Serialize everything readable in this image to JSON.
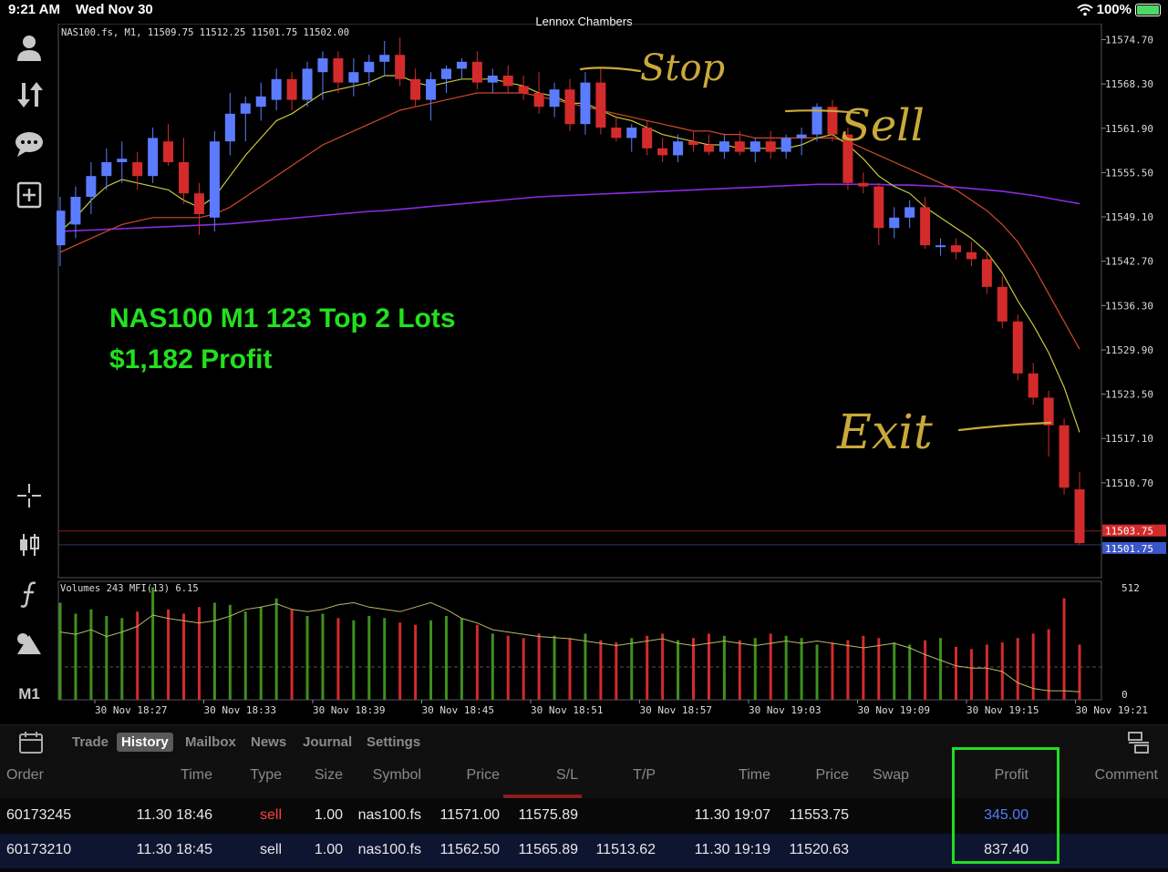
{
  "status_bar": {
    "time": "9:21 AM",
    "date": "Wed Nov 30",
    "title": "Lennox Chambers",
    "battery": "100%"
  },
  "toolbar": {
    "bottom_label": "M1"
  },
  "chart_data": {
    "type": "candlestick",
    "symbol_info": "NAS100.fs, M1, 11509.75 11512.25 11501.75 11502.00",
    "price_ticks": [
      "11574.70",
      "11568.30",
      "11561.90",
      "11555.50",
      "11549.10",
      "11542.70",
      "11536.30",
      "11529.90",
      "11523.50",
      "11517.10",
      "11510.70"
    ],
    "price_tick_values": [
      11574.7,
      11568.3,
      11561.9,
      11555.5,
      11549.1,
      11542.7,
      11536.3,
      11529.9,
      11523.5,
      11517.1,
      11510.7
    ],
    "ylim": [
      11497.0,
      11577.0
    ],
    "current_prices": {
      "red": "11503.75",
      "blue": "11501.75",
      "red_value": 11503.75,
      "blue_value": 11501.75
    },
    "time_labels": [
      "30 Nov 18:27",
      "30 Nov 18:33",
      "30 Nov 18:39",
      "30 Nov 18:45",
      "30 Nov 18:51",
      "30 Nov 18:57",
      "30 Nov 19:03",
      "30 Nov 19:09",
      "30 Nov 19:15",
      "30 Nov 19:21"
    ],
    "candles": [
      [
        11545.0,
        11552.0,
        11542.0,
        11550.0
      ],
      [
        11548.0,
        11553.5,
        11546.0,
        11552.0
      ],
      [
        11552.0,
        11557.0,
        11549.5,
        11555.0
      ],
      [
        11555.0,
        11559.0,
        11553.0,
        11557.0
      ],
      [
        11557.0,
        11560.0,
        11554.0,
        11557.5
      ],
      [
        11557.0,
        11558.5,
        11553.0,
        11555.0
      ],
      [
        11555.0,
        11562.0,
        11554.0,
        11560.5
      ],
      [
        11560.0,
        11562.5,
        11556.5,
        11557.0
      ],
      [
        11557.0,
        11560.5,
        11551.0,
        11552.5
      ],
      [
        11552.5,
        11554.0,
        11546.5,
        11549.5
      ],
      [
        11549.0,
        11561.5,
        11547.0,
        11560.0
      ],
      [
        11560.0,
        11567.0,
        11558.0,
        11564.0
      ],
      [
        11564.0,
        11566.5,
        11560.0,
        11565.5
      ],
      [
        11565.0,
        11568.5,
        11563.0,
        11566.5
      ],
      [
        11566.0,
        11570.5,
        11564.5,
        11569.0
      ],
      [
        11569.0,
        11570.0,
        11564.5,
        11566.0
      ],
      [
        11566.0,
        11571.5,
        11565.0,
        11570.5
      ],
      [
        11570.0,
        11573.0,
        11566.0,
        11572.0
      ],
      [
        11572.0,
        11573.0,
        11567.0,
        11568.5
      ],
      [
        11568.5,
        11572.0,
        11566.5,
        11570.0
      ],
      [
        11570.0,
        11572.5,
        11568.0,
        11571.5
      ],
      [
        11571.5,
        11574.5,
        11569.5,
        11572.5
      ],
      [
        11572.5,
        11575.0,
        11568.0,
        11569.0
      ],
      [
        11569.0,
        11570.5,
        11565.0,
        11566.0
      ],
      [
        11566.0,
        11570.0,
        11563.0,
        11569.0
      ],
      [
        11569.0,
        11571.0,
        11567.0,
        11570.5
      ],
      [
        11570.5,
        11572.0,
        11569.0,
        11571.5
      ],
      [
        11571.5,
        11573.0,
        11567.5,
        11568.5
      ],
      [
        11568.5,
        11570.5,
        11567.0,
        11569.5
      ],
      [
        11569.5,
        11571.0,
        11567.0,
        11568.0
      ],
      [
        11568.0,
        11569.5,
        11566.0,
        11567.0
      ],
      [
        11567.0,
        11570.0,
        11564.0,
        11565.0
      ],
      [
        11565.0,
        11568.5,
        11563.5,
        11567.5
      ],
      [
        11567.5,
        11569.0,
        11561.5,
        11562.5
      ],
      [
        11562.5,
        11570.0,
        11561.0,
        11568.5
      ],
      [
        11568.5,
        11570.5,
        11561.0,
        11562.0
      ],
      [
        11562.0,
        11563.5,
        11560.0,
        11560.5
      ],
      [
        11560.5,
        11562.5,
        11558.5,
        11562.0
      ],
      [
        11562.0,
        11563.0,
        11558.0,
        11559.0
      ],
      [
        11559.0,
        11560.5,
        11557.0,
        11558.0
      ],
      [
        11558.0,
        11561.0,
        11557.0,
        11560.0
      ],
      [
        11560.0,
        11561.5,
        11558.5,
        11559.5
      ],
      [
        11559.5,
        11561.0,
        11558.0,
        11558.5
      ],
      [
        11558.5,
        11561.0,
        11557.5,
        11560.0
      ],
      [
        11560.0,
        11561.5,
        11558.0,
        11558.5
      ],
      [
        11558.5,
        11560.5,
        11557.0,
        11560.0
      ],
      [
        11560.0,
        11561.5,
        11557.5,
        11558.5
      ],
      [
        11558.5,
        11561.0,
        11557.5,
        11560.5
      ],
      [
        11560.5,
        11562.0,
        11558.0,
        11561.0
      ],
      [
        11561.0,
        11565.5,
        11560.0,
        11565.0
      ],
      [
        11565.0,
        11566.0,
        11560.0,
        11561.0
      ],
      [
        11561.0,
        11562.0,
        11553.0,
        11554.0
      ],
      [
        11554.0,
        11555.5,
        11552.5,
        11553.5
      ],
      [
        11553.5,
        11554.0,
        11545.0,
        11547.5
      ],
      [
        11547.5,
        11550.5,
        11546.0,
        11549.0
      ],
      [
        11549.0,
        11551.5,
        11547.5,
        11550.5
      ],
      [
        11550.5,
        11552.0,
        11544.5,
        11545.0
      ],
      [
        11545.0,
        11546.0,
        11543.5,
        11545.0
      ],
      [
        11545.0,
        11546.0,
        11543.0,
        11544.0
      ],
      [
        11544.0,
        11545.5,
        11542.0,
        11543.0
      ],
      [
        11543.0,
        11544.0,
        11538.0,
        11539.0
      ],
      [
        11539.0,
        11540.5,
        11533.0,
        11534.0
      ],
      [
        11534.0,
        11535.0,
        11525.5,
        11526.5
      ],
      [
        11526.5,
        11528.0,
        11522.0,
        11523.0
      ],
      [
        11523.0,
        11524.0,
        11514.5,
        11519.0
      ],
      [
        11519.0,
        11520.0,
        11509.0,
        11510.0
      ],
      [
        11509.75,
        11512.25,
        11501.75,
        11502.0
      ]
    ],
    "ma_yellow": [
      11547.0,
      11549.0,
      11551.5,
      11553.5,
      11554.5,
      11554.0,
      11553.5,
      11553.0,
      11551.5,
      11550.5,
      11552.0,
      11555.0,
      11558.0,
      11560.5,
      11563.0,
      11564.0,
      11565.5,
      11567.0,
      11567.5,
      11568.0,
      11568.5,
      11569.5,
      11569.5,
      11568.5,
      11568.0,
      11568.5,
      11569.0,
      11569.0,
      11569.0,
      11568.5,
      11568.0,
      11567.0,
      11566.5,
      11565.5,
      11565.5,
      11564.5,
      11563.5,
      11563.0,
      11562.0,
      11561.0,
      11560.5,
      11560.0,
      11559.5,
      11559.5,
      11559.0,
      11559.0,
      11559.0,
      11559.0,
      11559.5,
      11560.5,
      11561.0,
      11559.5,
      11557.5,
      11555.0,
      11553.5,
      11552.5,
      11550.5,
      11549.0,
      11547.5,
      11546.0,
      11544.0,
      11541.0,
      11537.0,
      11533.5,
      11529.5,
      11524.5,
      11518.0
    ],
    "ma_red": [
      11544.0,
      11545.0,
      11546.0,
      11547.0,
      11548.0,
      11548.5,
      11549.0,
      11549.0,
      11549.0,
      11549.0,
      11549.5,
      11550.5,
      11552.0,
      11553.5,
      11555.0,
      11556.5,
      11558.0,
      11559.5,
      11560.5,
      11561.5,
      11562.5,
      11563.5,
      11564.5,
      11565.0,
      11565.5,
      11566.0,
      11566.5,
      11567.0,
      11567.0,
      11567.0,
      11567.0,
      11566.5,
      11566.0,
      11565.5,
      11565.0,
      11564.5,
      11564.0,
      11563.5,
      11563.0,
      11562.5,
      11562.0,
      11561.5,
      11561.5,
      11561.0,
      11561.0,
      11560.5,
      11560.5,
      11560.5,
      11560.5,
      11560.5,
      11560.5,
      11560.0,
      11559.0,
      11558.0,
      11557.0,
      11556.0,
      11555.0,
      11554.0,
      11553.0,
      11551.5,
      11550.0,
      11548.0,
      11545.5,
      11542.0,
      11538.0,
      11534.0,
      11530.0
    ],
    "ma_purple": [
      11547.0,
      11547.1,
      11547.2,
      11547.3,
      11547.4,
      11547.5,
      11547.6,
      11547.7,
      11547.8,
      11547.9,
      11548.0,
      11548.1,
      11548.3,
      11548.5,
      11548.7,
      11548.9,
      11549.1,
      11549.3,
      11549.5,
      11549.7,
      11549.9,
      11550.0,
      11550.2,
      11550.4,
      11550.6,
      11550.8,
      11551.0,
      11551.2,
      11551.4,
      11551.6,
      11551.8,
      11552.0,
      11552.1,
      11552.2,
      11552.3,
      11552.4,
      11552.5,
      11552.6,
      11552.7,
      11552.8,
      11552.9,
      11553.0,
      11553.1,
      11553.2,
      11553.3,
      11553.4,
      11553.5,
      11553.6,
      11553.7,
      11553.8,
      11553.8,
      11553.8,
      11553.8,
      11553.8,
      11553.7,
      11553.7,
      11553.6,
      11553.5,
      11553.4,
      11553.2,
      11553.0,
      11552.8,
      11552.5,
      11552.2,
      11551.8,
      11551.4,
      11551.0
    ],
    "volume_panel": {
      "label": "Volumes 243 MFI(13) 6.15",
      "ticks": [
        "512",
        "0"
      ],
      "ylim": [
        0,
        512
      ]
    },
    "volumes": [
      440,
      390,
      410,
      380,
      370,
      400,
      510,
      410,
      390,
      420,
      440,
      430,
      400,
      420,
      460,
      410,
      380,
      390,
      370,
      360,
      380,
      370,
      350,
      340,
      360,
      380,
      370,
      340,
      300,
      290,
      280,
      300,
      290,
      280,
      300,
      270,
      260,
      280,
      290,
      300,
      270,
      280,
      300,
      290,
      270,
      280,
      300,
      290,
      280,
      250,
      260,
      270,
      290,
      280,
      260,
      250,
      270,
      280,
      240,
      230,
      250,
      260,
      280,
      300,
      320,
      460,
      250
    ],
    "mfi": [
      60,
      58,
      62,
      56,
      60,
      65,
      75,
      72,
      70,
      68,
      70,
      74,
      80,
      82,
      85,
      80,
      78,
      80,
      84,
      86,
      82,
      80,
      78,
      82,
      86,
      80,
      72,
      68,
      62,
      60,
      58,
      56,
      55,
      54,
      52,
      50,
      48,
      50,
      52,
      54,
      50,
      48,
      50,
      52,
      50,
      48,
      50,
      52,
      50,
      52,
      50,
      48,
      46,
      48,
      50,
      46,
      40,
      35,
      30,
      28,
      28,
      25,
      15,
      10,
      8,
      8,
      7
    ]
  },
  "annotations": {
    "overlay_line1": "NAS100 M1 123 Top 2 Lots",
    "overlay_line2": "$1,182 Profit",
    "hand_stop": "Stop",
    "hand_sell": "Sell",
    "hand_exit": "Exit"
  },
  "tabs": [
    "Trade",
    "History",
    "Mailbox",
    "News",
    "Journal",
    "Settings"
  ],
  "active_tab": "History",
  "table": {
    "headers": [
      "Order",
      "Time",
      "Type",
      "Size",
      "Symbol",
      "Price",
      "S/L",
      "T/P",
      "Time",
      "Price",
      "Swap",
      "Profit",
      "Comment"
    ],
    "rows": [
      {
        "order": "60173245",
        "time": "11.30 18:46",
        "type": "sell",
        "size": "1.00",
        "symbol": "nas100.fs",
        "price": "11571.00",
        "sl": "11575.89",
        "tp": "",
        "close_time": "11.30 19:07",
        "close_price": "11553.75",
        "swap": "",
        "profit": "345.00",
        "comment": ""
      },
      {
        "order": "60173210",
        "time": "11.30 18:45",
        "type": "sell",
        "size": "1.00",
        "symbol": "nas100.fs",
        "price": "11562.50",
        "sl": "11565.89",
        "tp": "11513.62",
        "close_time": "11.30 19:19",
        "close_price": "11520.63",
        "swap": "",
        "profit": "837.40",
        "comment": ""
      }
    ]
  },
  "colors": {
    "bull": "#5b7cff",
    "bear": "#d32b2b",
    "ma_yellow": "#c8c83c",
    "ma_red": "#d24a2a",
    "ma_purple": "#8a2be2",
    "vol_up": "#3f8f1f",
    "vol_down": "#d32b2b",
    "overlay_text": "#22e01f",
    "handwriting": "#c9a93a",
    "highlight": "#22dd22",
    "sell_red": "#ff4040",
    "profit_blue": "#4f7dff"
  }
}
